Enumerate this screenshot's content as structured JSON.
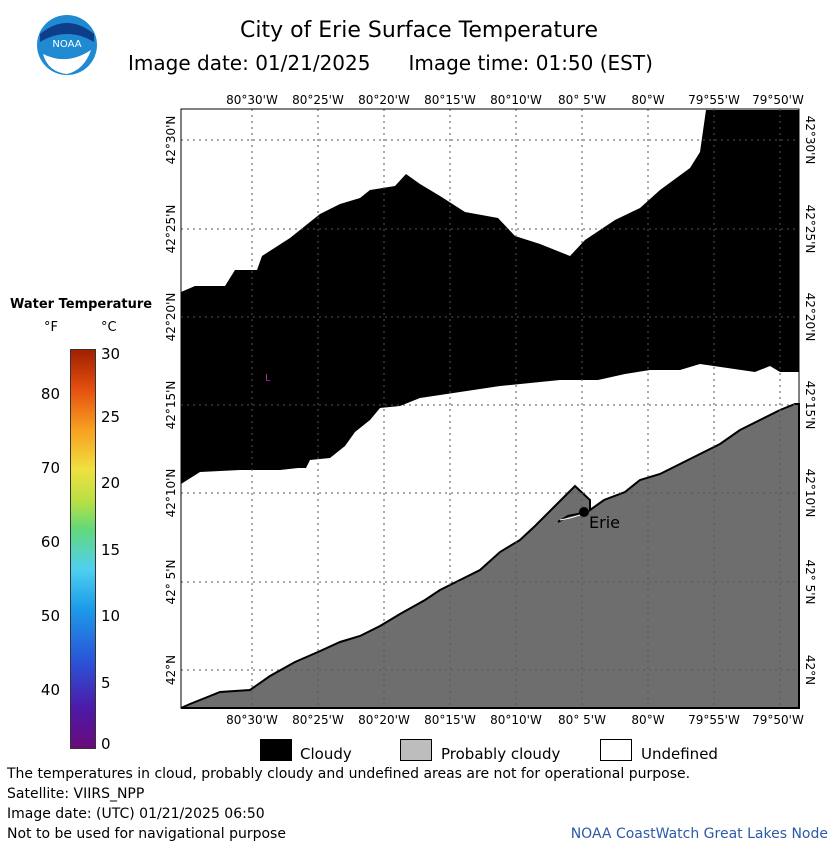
{
  "header": {
    "title": "City of Erie Surface Temperature",
    "image_date": "Image date: 01/21/2025",
    "image_time": "Image time: 01:50 (EST)",
    "logo_text": "NOAA"
  },
  "map": {
    "lon_ticks": [
      "80°30'W",
      "80°25'W",
      "80°20'W",
      "80°15'W",
      "80°10'W",
      "80° 5'W",
      "80°W",
      "79°55'W",
      "79°50'W"
    ],
    "lat_ticks": [
      "42°30'N",
      "42°25'N",
      "42°20'N",
      "42°15'N",
      "42°10'N",
      "42° 5'N",
      "42°N"
    ],
    "city_label": "Erie",
    "colors": {
      "cloudy": "#000000",
      "land": "#6e6e6e",
      "undefined": "#ffffff",
      "grid": "#555555"
    }
  },
  "legend": {
    "title": "Water Temperature",
    "unit_f": "°F",
    "unit_c": "°C",
    "f_ticks": [
      "80",
      "70",
      "60",
      "50",
      "40"
    ],
    "c_ticks": [
      "30",
      "25",
      "20",
      "15",
      "10",
      "5",
      "0"
    ]
  },
  "key": {
    "cloudy": "Cloudy",
    "probably_cloudy": "Probably cloudy",
    "undefined": "Undefined",
    "colors": {
      "cloudy": "#000000",
      "probably_cloudy": "#bdbdbd",
      "undefined": "#ffffff"
    }
  },
  "footer": {
    "disclaimer": "The temperatures in cloud, probably cloudy and undefined areas are not for operational purpose.",
    "satellite": "Satellite: VIIRS_NPP",
    "utc_date": "Image date: (UTC) 01/21/2025  06:50",
    "nav_warning": "Not to be used for navigational purpose",
    "credit": "NOAA CoastWatch Great Lakes Node"
  }
}
